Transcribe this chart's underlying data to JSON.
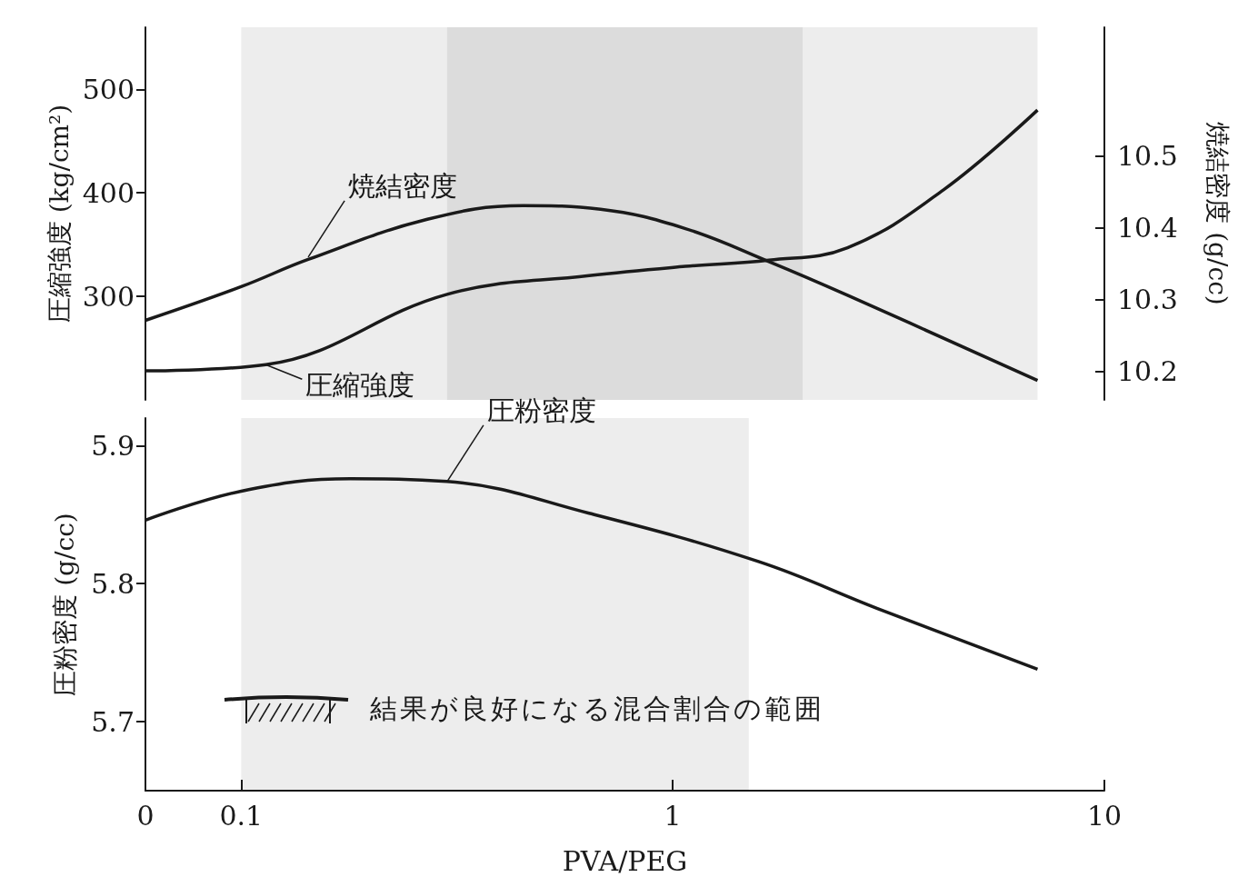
{
  "chart_data": [
    {
      "type": "line",
      "log": "x",
      "xlim": [
        0.06,
        10
      ],
      "tick_labels": "y",
      "ylabel": "圧縮強度 (kg/cm²)",
      "ylim": [
        200,
        560
      ],
      "yticks": [
        300,
        400,
        500
      ],
      "y2label": "焼結密度 (g/cc)",
      "y2lim": [
        10.16,
        10.68
      ],
      "y2ticks": [
        10.2,
        10.3,
        10.4,
        10.5
      ],
      "series": [
        {
          "color": "#1a1a1a",
          "axis": "y2",
          "x": [
            0.06,
            0.1,
            0.143,
            0.27,
            0.45,
            0.68,
            1.07,
            1.67,
            2.54,
            7.0
          ],
          "values": [
            10.271,
            10.318,
            10.356,
            10.412,
            10.431,
            10.426,
            10.399,
            10.353,
            10.306,
            10.187
          ]
        },
        {
          "color": "#1a1a1a",
          "x": [
            0.06,
            0.114,
            0.3,
            0.64,
            1.07,
            1.67,
            2.54,
            4.24,
            7.0
          ],
          "values": [
            228,
            234,
            302,
            320,
            329,
            335,
            347,
            403,
            480
          ]
        }
      ],
      "bands": [
        {
          "axis": "x",
          "from": 0.1,
          "to": 2
        },
        {
          "axis": "x",
          "from": 0.3,
          "to": 7
        }
      ],
      "annotations": [
        {
          "text": "焼結密度",
          "x": 0.143,
          "y": 338
        },
        {
          "text": "圧縮強度",
          "x": 0.114,
          "y": 234
        }
      ]
    },
    {
      "type": "line",
      "log": "x",
      "xlim": [
        0.06,
        10
      ],
      "xticks": [
        {
          "value": 0.06,
          "label": "0"
        },
        0.1,
        1,
        10
      ],
      "xlabel": "PVA/PEG",
      "ylabel": "圧粉密度 (g/cc)",
      "ylim": [
        5.65,
        5.92
      ],
      "yticks": [
        5.7,
        5.8,
        5.9
      ],
      "series": [
        {
          "color": "#1a1a1a",
          "x": [
            0.06,
            0.1,
            0.179,
            0.3,
            0.64,
            1.58,
            2.98,
            7.0
          ],
          "values": [
            5.846,
            5.867,
            5.876,
            5.874,
            5.851,
            5.816,
            5.782,
            5.738
          ]
        }
      ],
      "bands": [
        {
          "axis": "x",
          "from": 0.1,
          "to": 1.5
        }
      ],
      "annotations": [
        {
          "text": "圧粉密度",
          "x": 0.3,
          "y": 5.874
        },
        "結果が良好になる混合割合の範囲"
      ]
    }
  ]
}
